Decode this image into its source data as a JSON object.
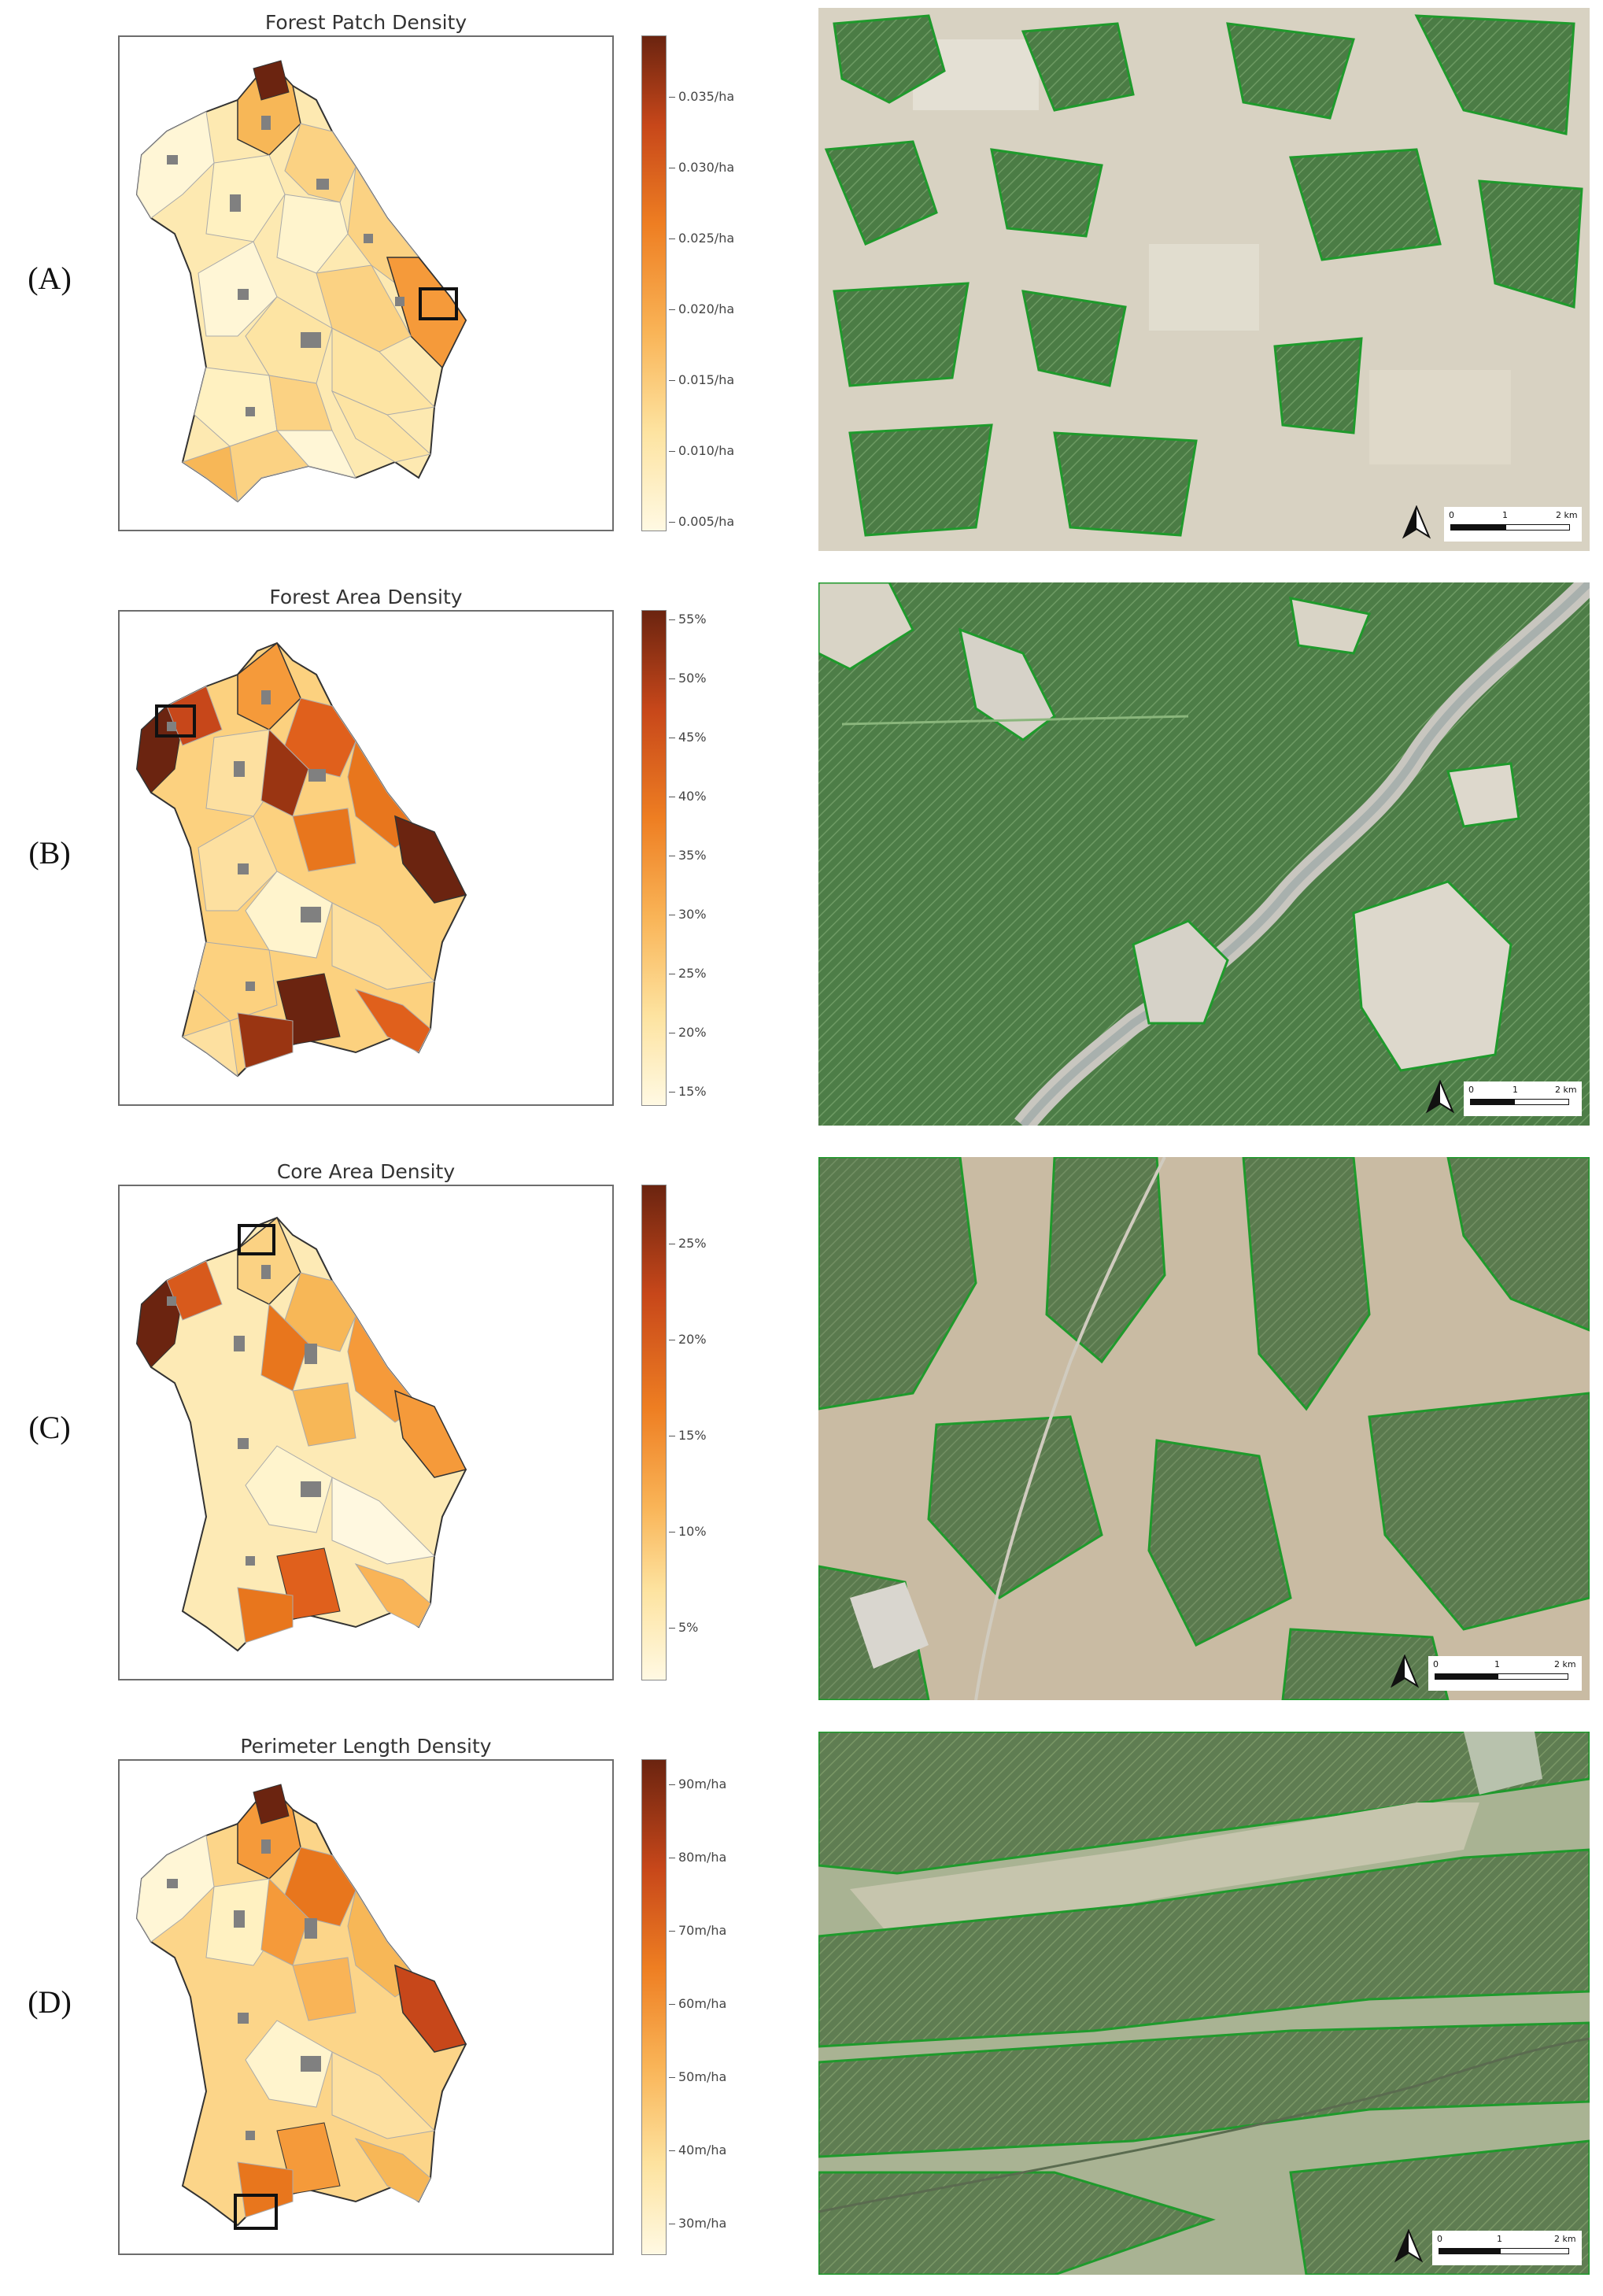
{
  "colors": {
    "accent_dark": "#6b2410",
    "accent_mid": "#e8761d",
    "accent_light": "#fff7d9",
    "urban_gray": "#808080",
    "forest_green": "#3d7a3a",
    "forest_outline": "#1f9a2c"
  },
  "panels": [
    {
      "label": "(A)",
      "title": "Forest Patch Density",
      "colorbar": {
        "ticks": [
          "0.035/ha",
          "0.030/ha",
          "0.025/ha",
          "0.020/ha",
          "0.015/ha",
          "0.010/ha",
          "0.005/ha"
        ]
      },
      "scalebar": {
        "ticks": [
          "0",
          "1",
          "2 km"
        ]
      },
      "north_icon": "north-arrow-icon"
    },
    {
      "label": "(B)",
      "title": "Forest Area Density",
      "colorbar": {
        "ticks": [
          "55%",
          "50%",
          "45%",
          "40%",
          "35%",
          "30%",
          "25%",
          "20%",
          "15%"
        ]
      },
      "scalebar": {
        "ticks": [
          "0",
          "1",
          "2 km"
        ]
      },
      "north_icon": "north-arrow-icon"
    },
    {
      "label": "(C)",
      "title": "Core Area Density",
      "colorbar": {
        "ticks": [
          "25%",
          "20%",
          "15%",
          "10%",
          "5%"
        ]
      },
      "scalebar": {
        "ticks": [
          "0",
          "1",
          "2 km"
        ]
      },
      "north_icon": "north-arrow-icon"
    },
    {
      "label": "(D)",
      "title": "Perimeter Length Density",
      "colorbar": {
        "ticks": [
          "90m/ha",
          "80m/ha",
          "70m/ha",
          "60m/ha",
          "50m/ha",
          "40m/ha",
          "30m/ha"
        ]
      },
      "scalebar": {
        "ticks": [
          "0",
          "1",
          "2 km"
        ]
      },
      "north_icon": "north-arrow-icon"
    }
  ]
}
